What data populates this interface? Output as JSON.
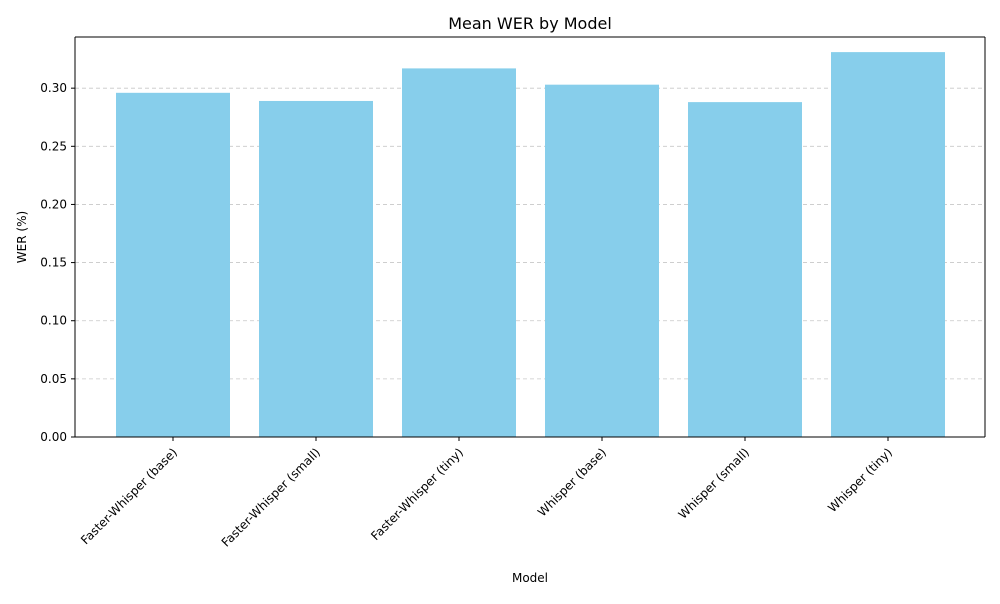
{
  "chart_data": {
    "type": "bar",
    "title": "Mean WER by Model",
    "xlabel": "Model",
    "ylabel": "WER (%)",
    "categories": [
      "Faster-Whisper (base)",
      "Faster-Whisper (small)",
      "Faster-Whisper (tiny)",
      "Whisper (base)",
      "Whisper (small)",
      "Whisper (tiny)"
    ],
    "values": [
      0.296,
      0.289,
      0.317,
      0.303,
      0.288,
      0.331
    ],
    "ylim": [
      0,
      0.344
    ],
    "yticks": [
      0.0,
      0.05,
      0.1,
      0.15,
      0.2,
      0.25,
      0.3
    ],
    "ytick_labels": [
      "0.00",
      "0.05",
      "0.10",
      "0.15",
      "0.20",
      "0.25",
      "0.30"
    ],
    "bar_color": "#87ceeb",
    "grid": {
      "axis": "y",
      "style": "dashed",
      "color": "#c8c8c8"
    },
    "xtick_rotation": "45deg"
  }
}
